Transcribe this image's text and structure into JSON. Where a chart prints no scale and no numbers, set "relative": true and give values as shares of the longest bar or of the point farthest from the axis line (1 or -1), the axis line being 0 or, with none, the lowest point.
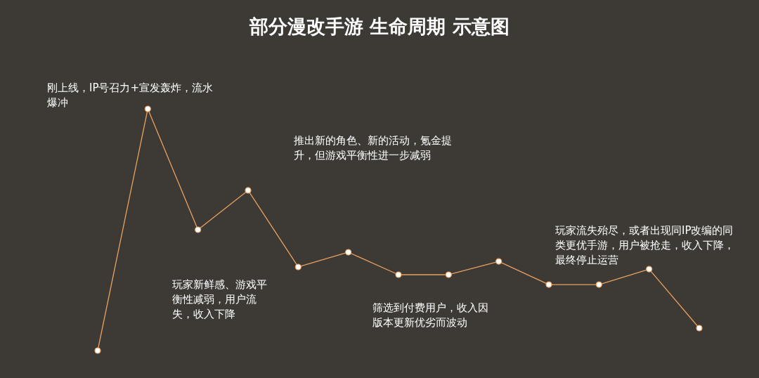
{
  "chart_data": {
    "type": "line",
    "title": "部分漫改手游 生命周期 示意图",
    "relative": true,
    "marker": "circle",
    "line_style": "solid",
    "categories": [
      null,
      null,
      null,
      null,
      null,
      null,
      null,
      null,
      null,
      null,
      null,
      null,
      null
    ],
    "series": [
      {
        "color": "#e8a060",
        "values": [
          0,
          1,
          0.5,
          0.663,
          0.346,
          0.407,
          0.314,
          0.314,
          0.369,
          0.273,
          0.273,
          0.337,
          0.093
        ]
      }
    ],
    "annotations": [
      "刚上线，IP号召力+宣发轰炸，流水爆冲",
      "玩家新鲜感、游戏平衡性减弱，用户流失，收入下降",
      "推出新的角色、新的活动，氪金提升，但游戏平衡性进一步减弱",
      "筛选到付费用户，收入因版本更新优劣而波动",
      "玩家流失殆尽，或者出现同IP改编的同类更优手游，用户被抢走，收入下降，最终停止运营"
    ]
  }
}
